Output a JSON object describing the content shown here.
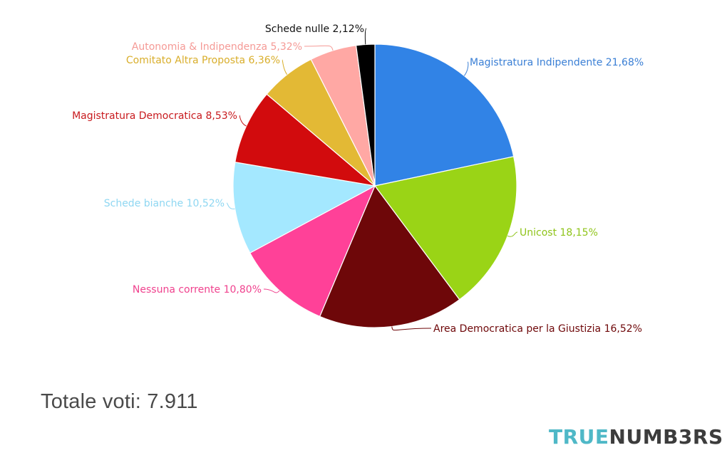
{
  "chart_data": {
    "type": "pie",
    "slices": [
      {
        "label": "Magistratura Indipendente 21,68%",
        "value": 21.68,
        "color": "#3183e6",
        "label_color": "#3a7fd5"
      },
      {
        "label": "Unicost 18,15%",
        "value": 18.15,
        "color": "#9ad416",
        "label_color": "#8fc41a"
      },
      {
        "label": "Area Democratica per la Giustizia 16,52%",
        "value": 16.52,
        "color": "#6e0709",
        "label_color": "#6e0709"
      },
      {
        "label": "Nessuna corrente 10,80%",
        "value": 10.8,
        "color": "#ff4198",
        "label_color": "#f0428e"
      },
      {
        "label": "Schede bianche 10,52%",
        "value": 10.52,
        "color": "#a4e8ff",
        "label_color": "#8fd7f2"
      },
      {
        "label": "Magistratura Democratica 8,53%",
        "value": 8.53,
        "color": "#d20b0d",
        "label_color": "#c81a1e"
      },
      {
        "label": "Comitato Altra Proposta 6,36%",
        "value": 6.36,
        "color": "#e3b935",
        "label_color": "#d9ae2b"
      },
      {
        "label": "Autonomia & Indipendenza 5,32%",
        "value": 5.32,
        "color": "#ffa8a4",
        "label_color": "#f59a96"
      },
      {
        "label": "Schede nulle 2,12%",
        "value": 2.12,
        "color": "#000000",
        "label_color": "#111111"
      }
    ]
  },
  "footer": {
    "total": "Totale voti: 7.911",
    "brand_part1": "TRUE",
    "brand_part2": "NUMB3RS"
  }
}
